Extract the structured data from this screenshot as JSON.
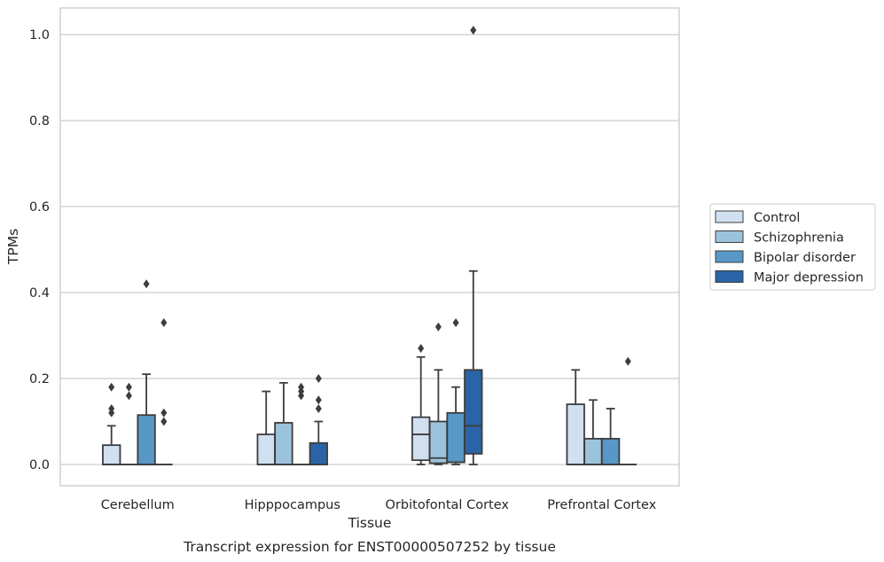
{
  "chart_data": {
    "type": "box",
    "title": "Transcript expression for ENST00000507252 by tissue",
    "xlabel": "Tissue",
    "ylabel": "TPMs",
    "categories": [
      "Cerebellum",
      "Hipppocampus",
      "Orbitofontal Cortex",
      "Prefrontal Cortex"
    ],
    "ylim": [
      -0.05,
      1.06
    ],
    "yticks": [
      0.0,
      0.2,
      0.4,
      0.6,
      0.8,
      1.0
    ],
    "ytick_labels": [
      "0.0",
      "0.2",
      "0.4",
      "0.6",
      "0.8",
      "1.0"
    ],
    "grid": true,
    "legend_position": "right",
    "series": [
      {
        "name": "Control",
        "color": "#d1e0f0",
        "boxes": [
          {
            "q1": 0.0,
            "median": 0.0,
            "q3": 0.045,
            "whisker_low": 0.0,
            "whisker_high": 0.09,
            "outliers": [
              0.12,
              0.13,
              0.18
            ]
          },
          {
            "q1": 0.0,
            "median": 0.0,
            "q3": 0.07,
            "whisker_low": 0.0,
            "whisker_high": 0.17,
            "outliers": []
          },
          {
            "q1": 0.01,
            "median": 0.07,
            "q3": 0.11,
            "whisker_low": 0.0,
            "whisker_high": 0.25,
            "outliers": [
              0.27
            ]
          },
          {
            "q1": 0.0,
            "median": 0.0,
            "q3": 0.14,
            "whisker_low": 0.0,
            "whisker_high": 0.22,
            "outliers": []
          }
        ]
      },
      {
        "name": "Schizophrenia",
        "color": "#9cc3dc",
        "boxes": [
          {
            "q1": 0.0,
            "median": 0.0,
            "q3": 0.0,
            "whisker_low": 0.0,
            "whisker_high": 0.0,
            "outliers": [
              0.16,
              0.18
            ]
          },
          {
            "q1": 0.0,
            "median": 0.0,
            "q3": 0.097,
            "whisker_low": 0.0,
            "whisker_high": 0.19,
            "outliers": []
          },
          {
            "q1": 0.003,
            "median": 0.015,
            "q3": 0.1,
            "whisker_low": 0.0,
            "whisker_high": 0.22,
            "outliers": [
              0.32
            ]
          },
          {
            "q1": 0.0,
            "median": 0.0,
            "q3": 0.06,
            "whisker_low": 0.0,
            "whisker_high": 0.15,
            "outliers": []
          }
        ]
      },
      {
        "name": "Bipolar disorder",
        "color": "#5898c6",
        "boxes": [
          {
            "q1": 0.0,
            "median": 0.0,
            "q3": 0.115,
            "whisker_low": 0.0,
            "whisker_high": 0.21,
            "outliers": [
              0.42
            ]
          },
          {
            "q1": 0.0,
            "median": 0.0,
            "q3": 0.0,
            "whisker_low": 0.0,
            "whisker_high": 0.0,
            "outliers": [
              0.16,
              0.17,
              0.18
            ]
          },
          {
            "q1": 0.005,
            "median": 0.005,
            "q3": 0.12,
            "whisker_low": 0.0,
            "whisker_high": 0.18,
            "outliers": [
              0.33
            ]
          },
          {
            "q1": 0.0,
            "median": 0.0,
            "q3": 0.06,
            "whisker_low": 0.0,
            "whisker_high": 0.13,
            "outliers": []
          }
        ]
      },
      {
        "name": "Major depression",
        "color": "#2a64a6",
        "boxes": [
          {
            "q1": 0.0,
            "median": 0.0,
            "q3": 0.0,
            "whisker_low": 0.0,
            "whisker_high": 0.0,
            "outliers": [
              0.1,
              0.12,
              0.33
            ]
          },
          {
            "q1": 0.0,
            "median": 0.0,
            "q3": 0.05,
            "whisker_low": 0.0,
            "whisker_high": 0.1,
            "outliers": [
              0.13,
              0.15,
              0.2
            ]
          },
          {
            "q1": 0.025,
            "median": 0.09,
            "q3": 0.22,
            "whisker_low": 0.0,
            "whisker_high": 0.45,
            "outliers": [
              1.01
            ]
          },
          {
            "q1": 0.0,
            "median": 0.0,
            "q3": 0.0,
            "whisker_low": 0.0,
            "whisker_high": 0.0,
            "outliers": [
              0.24
            ]
          }
        ]
      }
    ]
  }
}
